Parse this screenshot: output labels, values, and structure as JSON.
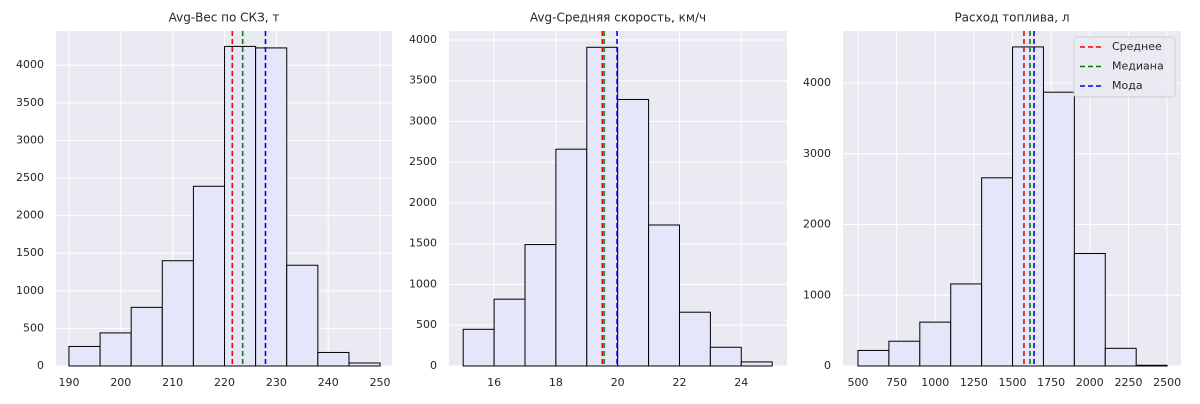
{
  "chart_data": [
    {
      "type": "histogram",
      "title": "Avg-Вес по СКЗ, т",
      "bins": [
        190,
        196,
        202,
        208,
        214,
        220,
        226,
        232,
        238,
        244,
        250
      ],
      "counts": [
        260,
        440,
        780,
        1400,
        2390,
        4250,
        4230,
        1340,
        180,
        40
      ],
      "color": "#e6e6fa",
      "edgecolor": "#000000",
      "xlim": [
        187.5,
        252.3
      ],
      "ylim": [
        0,
        4455
      ],
      "xticks": [
        190,
        200,
        210,
        220,
        230,
        240,
        250
      ],
      "yticks": [
        0,
        500,
        1000,
        1500,
        2000,
        2500,
        3000,
        3500,
        4000
      ],
      "grid": true,
      "vlines": [
        {
          "color": "#ff0000",
          "value": 221.5
        },
        {
          "color": "#008000",
          "value": 223.5
        },
        {
          "color": "#0000ff",
          "value": 227.9
        }
      ]
    },
    {
      "type": "histogram",
      "title": "Avg-Средняя скорость, км/ч",
      "bins": [
        15,
        16,
        17,
        18,
        19,
        20,
        21,
        22,
        23,
        24,
        25
      ],
      "counts": [
        450,
        820,
        1490,
        2660,
        3910,
        3270,
        1730,
        660,
        230,
        50
      ],
      "color": "#e6e6fa",
      "edgecolor": "#000000",
      "xlim": [
        14.54,
        25.48
      ],
      "ylim": [
        0,
        4110
      ],
      "xticks": [
        16,
        18,
        20,
        22,
        24
      ],
      "yticks": [
        0,
        500,
        1000,
        1500,
        2000,
        2500,
        3000,
        3500,
        4000
      ],
      "grid": true,
      "vlines": [
        {
          "color": "#ff0000",
          "value": 19.5
        },
        {
          "color": "#008000",
          "value": 19.56
        },
        {
          "color": "#0000ff",
          "value": 19.98
        }
      ]
    },
    {
      "type": "histogram",
      "title": "Расход топлива, л",
      "bins": [
        500,
        700,
        900,
        1100,
        1300,
        1500,
        1700,
        1900,
        2100,
        2300,
        2500
      ],
      "counts": [
        220,
        350,
        620,
        1160,
        2660,
        4510,
        3870,
        1590,
        250,
        10
      ],
      "color": "#e6e6fa",
      "edgecolor": "#000000",
      "xlim": [
        403,
        2590
      ],
      "ylim": [
        0,
        4735
      ],
      "xticks": [
        500,
        750,
        1000,
        1250,
        1500,
        1750,
        2000,
        2250,
        2500
      ],
      "yticks": [
        0,
        1000,
        2000,
        3000,
        4000
      ],
      "grid": true,
      "legend": "upper right",
      "vlines": [
        {
          "name": "Среднее",
          "color": "#ff0000",
          "value": 1574
        },
        {
          "name": "Медиана",
          "color": "#008000",
          "value": 1613
        },
        {
          "name": "Мода",
          "color": "#0000ff",
          "value": 1639
        }
      ]
    }
  ]
}
